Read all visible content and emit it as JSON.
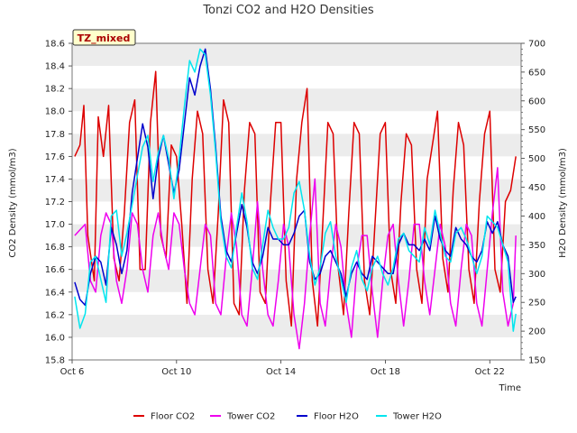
{
  "chart_data": {
    "type": "line",
    "title": "Tonzi CO2 and H2O Densities",
    "xlabel": "Time",
    "ylabel_left": "CO2 Density (mmol/m3)",
    "ylabel_right": "H2O Density (mmol/m3)",
    "site_label": "TZ_mixed",
    "xlim": [
      0,
      17.2
    ],
    "ylim_left": [
      15.8,
      18.6
    ],
    "ylim_right": [
      150,
      700
    ],
    "x_ticks": [
      {
        "value": 0,
        "label": "Oct 6"
      },
      {
        "value": 4,
        "label": "Oct 10"
      },
      {
        "value": 8,
        "label": "Oct 14"
      },
      {
        "value": 12,
        "label": "Oct 18"
      },
      {
        "value": 16,
        "label": "Oct 22"
      }
    ],
    "y_ticks_left": [
      "15.8",
      "16.0",
      "16.2",
      "16.4",
      "16.6",
      "16.8",
      "17.0",
      "17.2",
      "17.4",
      "17.6",
      "17.8",
      "18.0",
      "18.2",
      "18.4",
      "18.6"
    ],
    "y_ticks_right": [
      "150",
      "200",
      "250",
      "300",
      "350",
      "400",
      "450",
      "500",
      "550",
      "600",
      "650",
      "700"
    ],
    "grid": "horizontal bands",
    "legend_position": "bottom",
    "series": [
      {
        "name": "Floor CO2",
        "axis": "left",
        "color": "#dd0000",
        "x": [
          0.1,
          0.3,
          0.45,
          0.6,
          0.85,
          1.0,
          1.2,
          1.4,
          1.6,
          1.8,
          2.0,
          2.2,
          2.4,
          2.6,
          2.8,
          3.0,
          3.2,
          3.4,
          3.6,
          3.8,
          4.0,
          4.2,
          4.4,
          4.6,
          4.8,
          5.0,
          5.2,
          5.4,
          5.6,
          5.8,
          6.0,
          6.2,
          6.4,
          6.6,
          6.8,
          7.0,
          7.2,
          7.4,
          7.6,
          7.8,
          8.0,
          8.2,
          8.4,
          8.6,
          8.8,
          9.0,
          9.2,
          9.4,
          9.6,
          9.8,
          10.0,
          10.2,
          10.4,
          10.6,
          10.8,
          11.0,
          11.2,
          11.4,
          11.6,
          11.8,
          12.0,
          12.2,
          12.4,
          12.6,
          12.8,
          13.0,
          13.2,
          13.4,
          13.6,
          13.8,
          14.0,
          14.2,
          14.4,
          14.6,
          14.8,
          15.0,
          15.2,
          15.4,
          15.6,
          15.8,
          16.0,
          16.2,
          16.4,
          16.6,
          16.8,
          17.0
        ],
        "values": [
          17.6,
          17.7,
          18.05,
          16.9,
          16.5,
          17.95,
          17.6,
          18.05,
          16.7,
          16.5,
          17.1,
          17.9,
          18.1,
          16.6,
          16.6,
          17.9,
          18.35,
          16.9,
          16.7,
          17.7,
          17.6,
          17.0,
          16.3,
          17.4,
          18.0,
          17.8,
          16.6,
          16.3,
          17.1,
          18.1,
          17.9,
          16.3,
          16.2,
          17.3,
          17.9,
          17.8,
          16.4,
          16.3,
          17.2,
          17.9,
          17.9,
          16.5,
          16.1,
          17.4,
          17.9,
          18.2,
          16.5,
          16.1,
          17.0,
          17.9,
          17.8,
          16.6,
          16.2,
          17.1,
          17.9,
          17.8,
          16.5,
          16.2,
          17.0,
          17.8,
          17.9,
          16.6,
          16.3,
          17.2,
          17.8,
          17.7,
          16.6,
          16.3,
          17.4,
          17.7,
          18.0,
          16.7,
          16.4,
          17.3,
          17.9,
          17.7,
          16.6,
          16.3,
          17.2,
          17.8,
          18.0,
          16.6,
          16.4,
          17.2,
          17.3,
          17.6
        ]
      },
      {
        "name": "Tower CO2",
        "axis": "left",
        "color": "#ee00ee",
        "x": [
          0.1,
          0.3,
          0.5,
          0.7,
          0.9,
          1.1,
          1.3,
          1.5,
          1.7,
          1.9,
          2.1,
          2.3,
          2.5,
          2.7,
          2.9,
          3.1,
          3.3,
          3.5,
          3.7,
          3.9,
          4.1,
          4.3,
          4.5,
          4.7,
          4.9,
          5.1,
          5.3,
          5.5,
          5.7,
          5.9,
          6.1,
          6.3,
          6.5,
          6.7,
          6.9,
          7.1,
          7.3,
          7.5,
          7.7,
          7.9,
          8.1,
          8.3,
          8.5,
          8.7,
          8.9,
          9.1,
          9.3,
          9.5,
          9.7,
          9.9,
          10.1,
          10.3,
          10.5,
          10.7,
          10.9,
          11.1,
          11.3,
          11.5,
          11.7,
          11.9,
          12.1,
          12.3,
          12.5,
          12.7,
          12.9,
          13.1,
          13.3,
          13.5,
          13.7,
          13.9,
          14.1,
          14.3,
          14.5,
          14.7,
          14.9,
          15.1,
          15.3,
          15.5,
          15.7,
          15.9,
          16.1,
          16.3,
          16.5,
          16.7,
          16.9,
          17.0
        ],
        "values": [
          16.9,
          16.95,
          17.0,
          16.5,
          16.4,
          16.9,
          17.1,
          17.0,
          16.5,
          16.3,
          16.6,
          17.1,
          17.0,
          16.6,
          16.4,
          16.9,
          17.1,
          16.8,
          16.6,
          17.1,
          17.0,
          16.6,
          16.3,
          16.2,
          16.6,
          17.0,
          16.9,
          16.3,
          16.2,
          16.7,
          17.1,
          16.8,
          16.2,
          16.1,
          16.6,
          17.2,
          16.6,
          16.2,
          16.1,
          16.5,
          17.0,
          16.8,
          16.2,
          15.9,
          16.3,
          16.9,
          17.4,
          16.3,
          16.1,
          16.6,
          17.0,
          16.8,
          16.3,
          16.0,
          16.6,
          16.9,
          16.9,
          16.4,
          16.0,
          16.5,
          16.9,
          17.0,
          16.5,
          16.1,
          16.5,
          17.0,
          17.0,
          16.5,
          16.2,
          16.6,
          17.0,
          16.8,
          16.3,
          16.1,
          16.6,
          17.0,
          16.9,
          16.3,
          16.1,
          16.6,
          17.1,
          17.5,
          16.4,
          16.1,
          16.3,
          16.9
        ]
      },
      {
        "name": "Floor H2O",
        "axis": "right",
        "color": "#0000cc",
        "x": [
          0.1,
          0.3,
          0.5,
          0.7,
          0.9,
          1.1,
          1.3,
          1.5,
          1.7,
          1.9,
          2.1,
          2.3,
          2.5,
          2.7,
          2.9,
          3.1,
          3.3,
          3.5,
          3.7,
          3.9,
          4.1,
          4.3,
          4.5,
          4.7,
          4.9,
          5.1,
          5.3,
          5.5,
          5.7,
          5.9,
          6.1,
          6.3,
          6.5,
          6.7,
          6.9,
          7.1,
          7.3,
          7.5,
          7.7,
          7.9,
          8.1,
          8.3,
          8.5,
          8.7,
          8.9,
          9.1,
          9.3,
          9.5,
          9.7,
          9.9,
          10.1,
          10.3,
          10.5,
          10.7,
          10.9,
          11.1,
          11.3,
          11.5,
          11.7,
          11.9,
          12.1,
          12.3,
          12.5,
          12.7,
          12.9,
          13.1,
          13.3,
          13.5,
          13.7,
          13.9,
          14.1,
          14.3,
          14.5,
          14.7,
          14.9,
          15.1,
          15.3,
          15.5,
          15.7,
          15.9,
          16.1,
          16.3,
          16.5,
          16.7,
          16.9,
          17.0
        ],
        "values": [
          285,
          255,
          245,
          300,
          330,
          320,
          280,
          380,
          350,
          300,
          340,
          440,
          500,
          560,
          520,
          430,
          500,
          540,
          490,
          440,
          480,
          560,
          640,
          610,
          660,
          690,
          620,
          520,
          400,
          340,
          320,
          370,
          420,
          380,
          320,
          300,
          330,
          380,
          360,
          360,
          350,
          350,
          370,
          400,
          410,
          320,
          290,
          300,
          330,
          340,
          320,
          300,
          260,
          300,
          320,
          300,
          290,
          330,
          320,
          310,
          300,
          300,
          350,
          370,
          350,
          350,
          340,
          360,
          340,
          400,
          360,
          340,
          330,
          380,
          360,
          350,
          330,
          320,
          340,
          390,
          370,
          390,
          350,
          330,
          250,
          260
        ]
      },
      {
        "name": "Tower H2O",
        "axis": "right",
        "color": "#00e5ee",
        "x": [
          0.1,
          0.3,
          0.5,
          0.7,
          0.9,
          1.1,
          1.3,
          1.5,
          1.7,
          1.9,
          2.1,
          2.3,
          2.5,
          2.7,
          2.9,
          3.1,
          3.3,
          3.5,
          3.7,
          3.9,
          4.1,
          4.3,
          4.5,
          4.7,
          4.9,
          5.1,
          5.3,
          5.5,
          5.7,
          5.9,
          6.1,
          6.3,
          6.5,
          6.7,
          6.9,
          7.1,
          7.3,
          7.5,
          7.7,
          7.9,
          8.1,
          8.3,
          8.5,
          8.7,
          8.9,
          9.1,
          9.3,
          9.5,
          9.7,
          9.9,
          10.1,
          10.3,
          10.5,
          10.7,
          10.9,
          11.1,
          11.3,
          11.5,
          11.7,
          11.9,
          12.1,
          12.3,
          12.5,
          12.7,
          12.9,
          13.1,
          13.3,
          13.5,
          13.7,
          13.9,
          14.1,
          14.3,
          14.5,
          14.7,
          14.9,
          15.1,
          15.3,
          15.5,
          15.7,
          15.9,
          16.1,
          16.3,
          16.5,
          16.7,
          16.9,
          17.0
        ],
        "values": [
          260,
          205,
          230,
          320,
          330,
          290,
          250,
          400,
          410,
          330,
          370,
          420,
          470,
          520,
          540,
          460,
          510,
          540,
          500,
          430,
          500,
          590,
          670,
          650,
          690,
          680,
          610,
          510,
          390,
          330,
          310,
          380,
          440,
          390,
          310,
          290,
          350,
          410,
          380,
          360,
          360,
          380,
          440,
          460,
          410,
          330,
          280,
          310,
          370,
          390,
          330,
          290,
          250,
          310,
          340,
          290,
          270,
          310,
          330,
          300,
          280,
          310,
          360,
          370,
          340,
          330,
          320,
          380,
          350,
          410,
          370,
          330,
          320,
          370,
          380,
          360,
          330,
          300,
          330,
          400,
          390,
          380,
          350,
          320,
          200,
          230
        ]
      }
    ]
  }
}
